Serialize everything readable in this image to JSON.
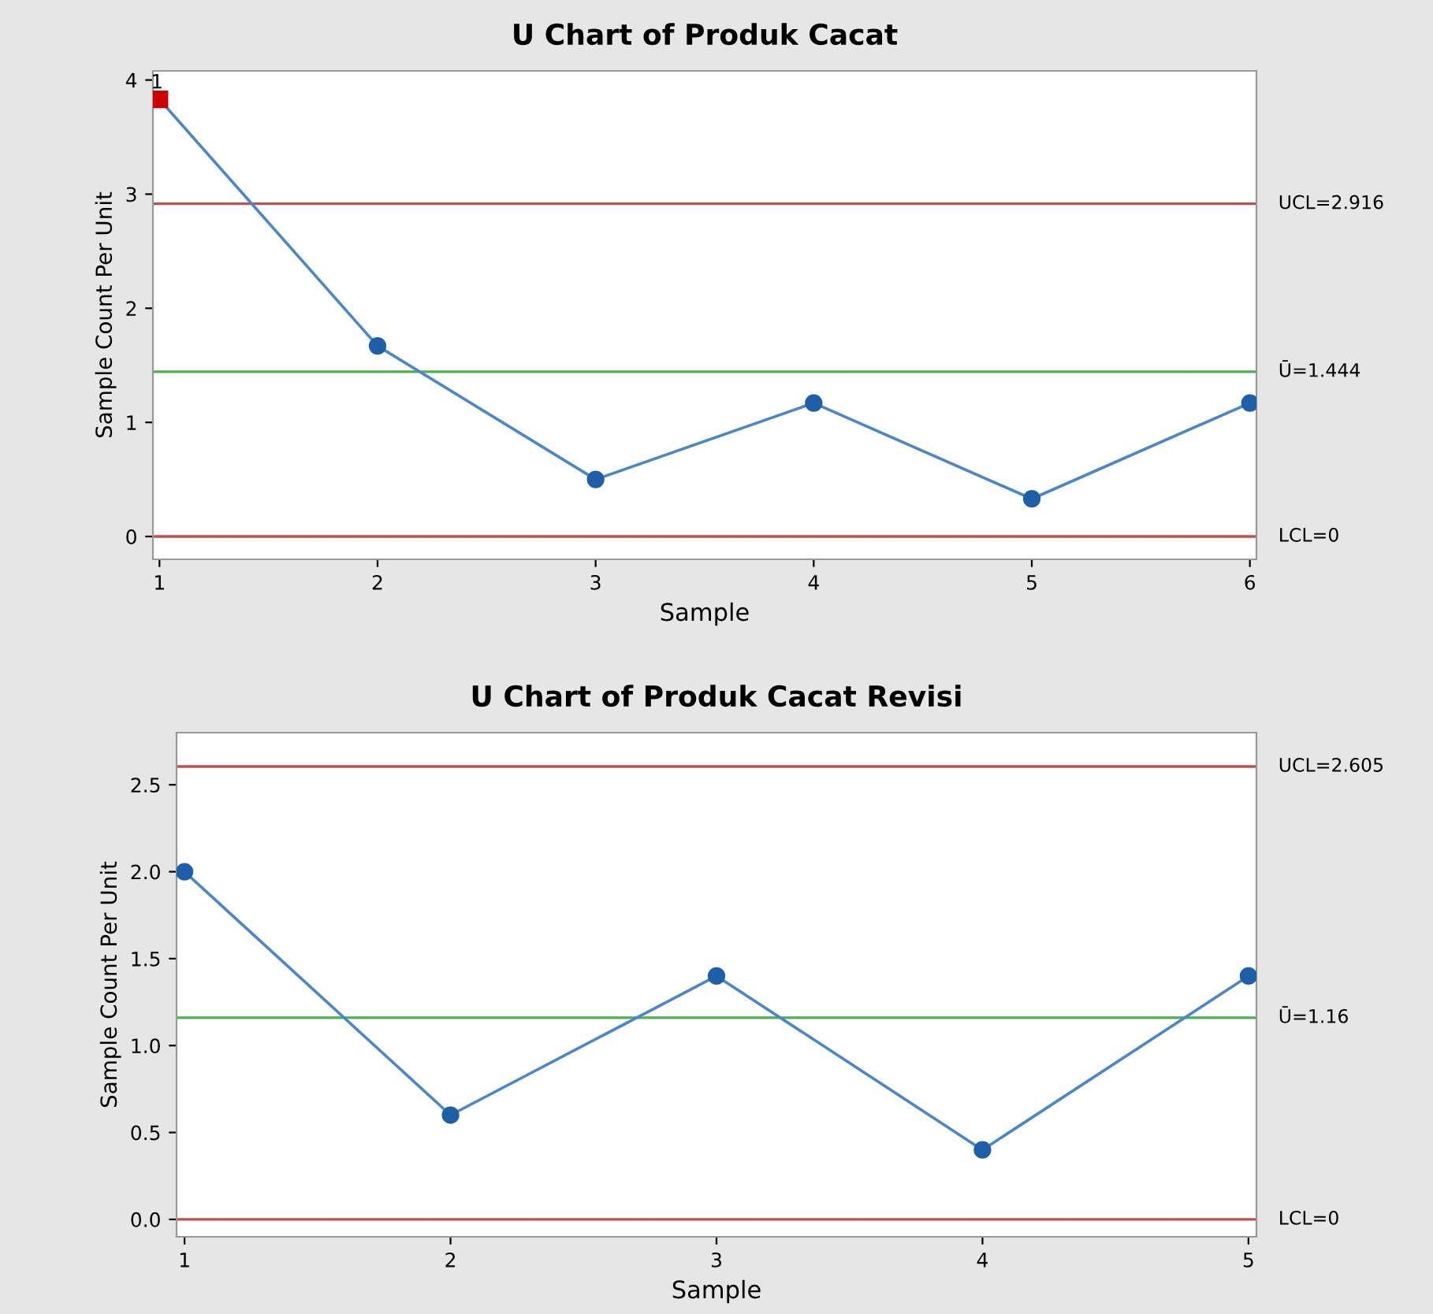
{
  "chart_data": [
    {
      "type": "line",
      "title": "U Chart of Produk Cacat",
      "xlabel": "Sample",
      "ylabel": "Sample Count Per Unit",
      "x": [
        1,
        2,
        3,
        4,
        5,
        6
      ],
      "series": [
        {
          "color": "#4a86c8",
          "values": [
            3.83,
            1.67,
            0.5,
            1.17,
            0.33,
            1.17
          ],
          "marker": "none"
        },
        {
          "type": "scatter",
          "color": "#1f5fa8",
          "marker": "circle",
          "values": [
            null,
            1.67,
            0.5,
            1.17,
            0.33,
            1.17
          ]
        },
        {
          "type": "scatter",
          "color": "#cc0000",
          "marker": "square",
          "values": [
            3.83,
            null,
            null,
            null,
            null,
            null
          ]
        }
      ],
      "line_style": "solid",
      "xlim": [
        0.97,
        6.03
      ],
      "xticks": [
        1,
        2,
        3,
        4,
        5,
        6
      ],
      "ylim": [
        -0.2,
        4.08
      ],
      "yticks": [
        0,
        1,
        2,
        3,
        4
      ],
      "ref_lines": [
        {
          "axis": "y",
          "value": 2.916,
          "label": "UCL=2.916",
          "color": "#c0504d"
        },
        {
          "axis": "y",
          "value": 1.444,
          "label": "Ū=1.444",
          "color": "#4caf50"
        },
        {
          "axis": "y",
          "value": 0,
          "label": "LCL=0",
          "color": "#c0504d"
        }
      ],
      "annotations": [
        {
          "text": "1",
          "x": 1,
          "y": 3.83
        }
      ],
      "grid": false,
      "legend": false
    },
    {
      "type": "line",
      "title": "U Chart of Produk Cacat Revisi",
      "xlabel": "Sample",
      "ylabel": "Sample Count Per Unit",
      "x": [
        1,
        2,
        3,
        4,
        5
      ],
      "series": [
        {
          "color": "#4a86c8",
          "values": [
            2.0,
            0.6,
            1.4,
            0.4,
            1.4
          ],
          "marker": "none"
        },
        {
          "type": "scatter",
          "color": "#1f5fa8",
          "marker": "circle",
          "values": [
            2.0,
            0.6,
            1.4,
            0.4,
            1.4
          ]
        }
      ],
      "line_style": "solid",
      "xlim": [
        0.97,
        5.03
      ],
      "xticks": [
        1,
        2,
        3,
        4,
        5
      ],
      "ylim": [
        -0.1,
        2.8
      ],
      "yticks": [
        {
          "value": 0,
          "label": "0.0"
        },
        {
          "value": 0.5,
          "label": "0.5"
        },
        {
          "value": 1,
          "label": "1.0"
        },
        {
          "value": 1.5,
          "label": "1.5"
        },
        {
          "value": 2,
          "label": "2.0"
        },
        {
          "value": 2.5,
          "label": "2.5"
        }
      ],
      "ref_lines": [
        {
          "axis": "y",
          "value": 2.605,
          "label": "UCL=2.605",
          "color": "#c0504d"
        },
        {
          "axis": "y",
          "value": 1.16,
          "label": "Ū=1.16",
          "color": "#4caf50"
        },
        {
          "axis": "y",
          "value": 0,
          "label": "LCL=0",
          "color": "#c0504d"
        }
      ],
      "grid": false,
      "legend": false
    }
  ]
}
